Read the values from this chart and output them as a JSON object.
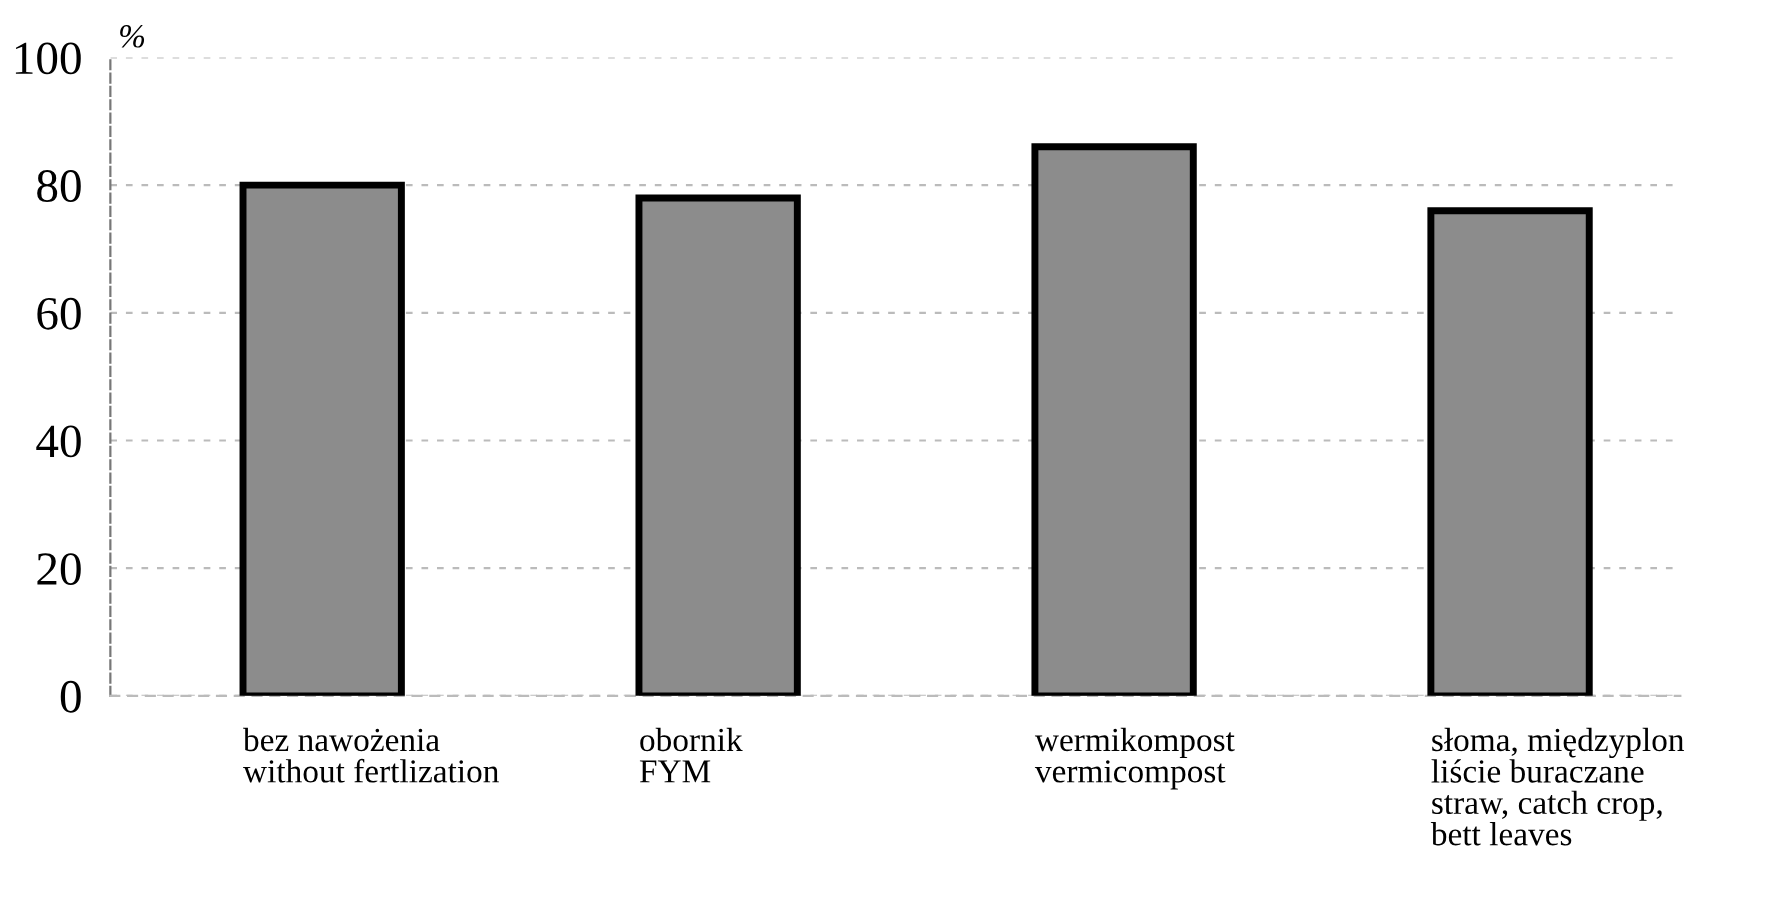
{
  "chart_data": {
    "type": "bar",
    "ylabel": "%",
    "categories": [
      "bez nawożenia\nwithout fertlization",
      "obornik\nFYM",
      "wermikompost\nvermicompost",
      "słoma, międzyplon\nliście buraczane\nstraw, catch crop,\nbett leaves"
    ],
    "values": [
      80,
      78,
      86,
      76
    ],
    "color": "#8c8c8c",
    "ylim": [
      0,
      100
    ],
    "yticks": [
      0,
      20,
      40,
      60,
      80,
      100
    ],
    "grid": "y"
  }
}
